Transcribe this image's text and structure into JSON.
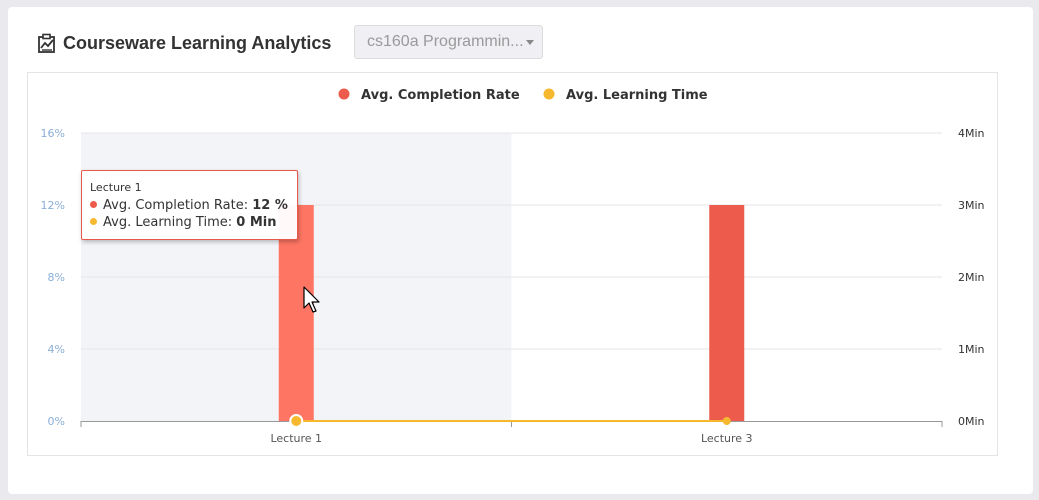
{
  "header": {
    "title": "Courseware Learning Analytics",
    "icon": "clipboard-chart-icon"
  },
  "course_select": {
    "value": "cs160a Programmin..."
  },
  "colors": {
    "completion": "#ec5b4c",
    "completion_hover": "#ff7563",
    "time": "#f5b82e",
    "band": "#f2f4f8",
    "left_axis": "#8aaed6",
    "grid": "#e6e6e6"
  },
  "tooltip": {
    "title": "Lecture 1",
    "rows": [
      {
        "label": "Avg. Completion Rate: ",
        "value": "12 %"
      },
      {
        "label": "Avg. Learning Time: ",
        "value": "0 Min"
      }
    ]
  },
  "chart_data": {
    "type": "bar",
    "categories": [
      "Lecture 1",
      "Lecture 3"
    ],
    "series": [
      {
        "name": "Avg. Completion Rate",
        "type": "bar",
        "axis": "left",
        "values": [
          12,
          12
        ]
      },
      {
        "name": "Avg. Learning Time",
        "type": "line",
        "axis": "right",
        "values": [
          0,
          0
        ]
      }
    ],
    "y_left": {
      "ticks": [
        "0%",
        "4%",
        "8%",
        "12%",
        "16%"
      ],
      "range": [
        0,
        16
      ],
      "unit": "%"
    },
    "y_right": {
      "ticks": [
        "0Min",
        "1Min",
        "2Min",
        "3Min",
        "4Min"
      ],
      "range": [
        0,
        4
      ],
      "unit": "Min"
    },
    "legend_position": "top-center",
    "grid": true,
    "highlighted_category": "Lecture 1"
  }
}
